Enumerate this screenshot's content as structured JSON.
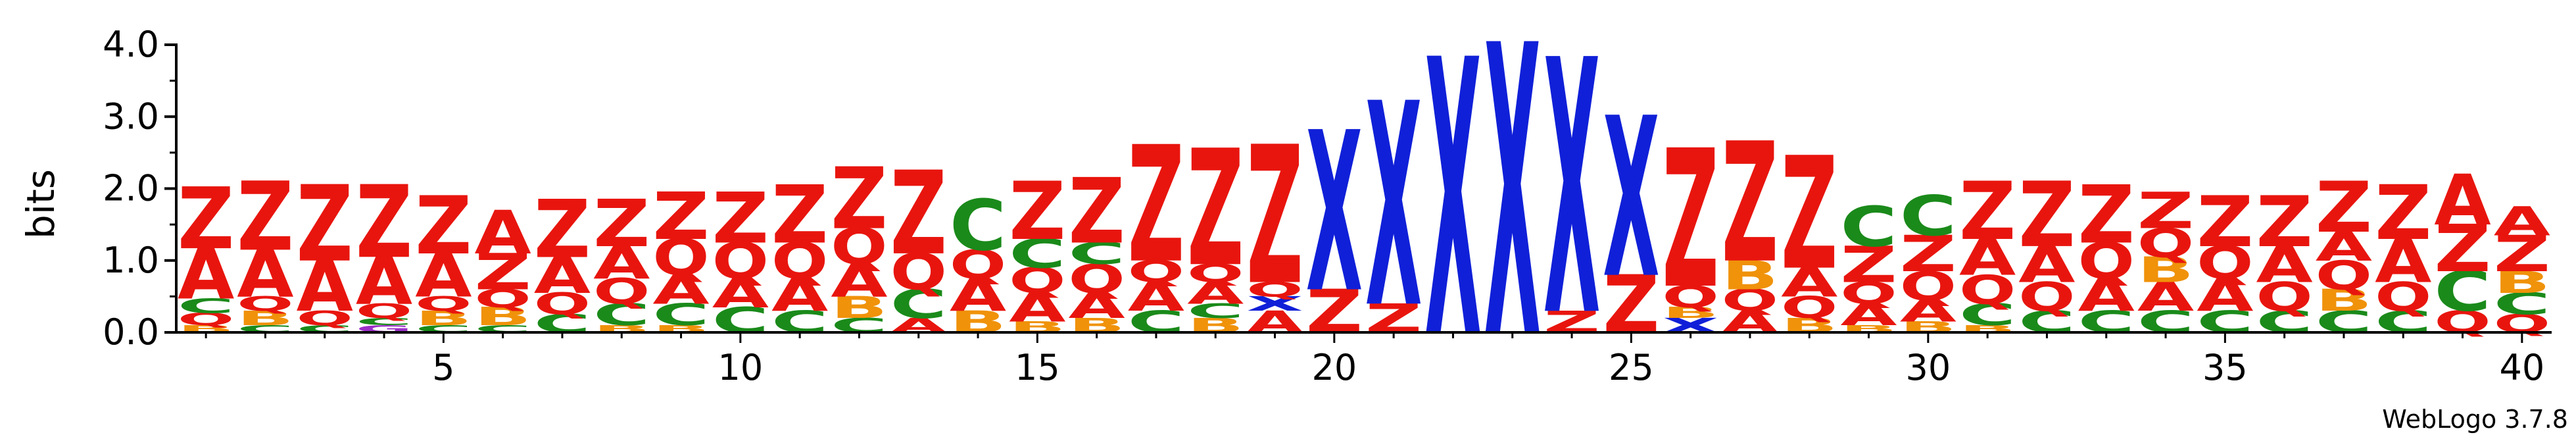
{
  "chart_data": {
    "type": "sequence-logo",
    "ylabel": "bits",
    "ylim": [
      0,
      4.0
    ],
    "yticks": [
      "0.0",
      "1.0",
      "2.0",
      "3.0",
      "4.0"
    ],
    "xticks": [
      5,
      10,
      15,
      20,
      25,
      30,
      35,
      40
    ],
    "positions": 40,
    "credit": "WebLogo 3.7.8",
    "colors": {
      "Z": "#e8150e",
      "A": "#e8150e",
      "Q": "#e8150e",
      "X": "#1020d8",
      "C": "#1a8a1a",
      "B": "#f0920a",
      "G": "#9b30c8"
    },
    "columns": [
      [
        [
          "B",
          0.1
        ],
        [
          "Q",
          0.17
        ],
        [
          "C",
          0.2
        ],
        [
          "A",
          0.7
        ],
        [
          "Z",
          0.85
        ]
      ],
      [
        [
          "C",
          0.1
        ],
        [
          "B",
          0.2
        ],
        [
          "Q",
          0.2
        ],
        [
          "A",
          0.65
        ],
        [
          "Z",
          0.95
        ]
      ],
      [
        [
          "C",
          0.1
        ],
        [
          "Q",
          0.2
        ],
        [
          "A",
          0.7
        ],
        [
          "Z",
          1.05
        ]
      ],
      [
        [
          "G",
          0.1
        ],
        [
          "C",
          0.1
        ],
        [
          "Q",
          0.2
        ],
        [
          "A",
          0.65
        ],
        [
          "Z",
          1.0
        ]
      ],
      [
        [
          "C",
          0.1
        ],
        [
          "B",
          0.2
        ],
        [
          "Q",
          0.2
        ],
        [
          "A",
          0.6
        ],
        [
          "Z",
          0.8
        ]
      ],
      [
        [
          "C",
          0.1
        ],
        [
          "B",
          0.25
        ],
        [
          "Q",
          0.25
        ],
        [
          "Z",
          0.5
        ],
        [
          "A",
          0.6
        ]
      ],
      [
        [
          "C",
          0.25
        ],
        [
          "Q",
          0.3
        ],
        [
          "A",
          0.5
        ],
        [
          "Z",
          0.8
        ]
      ],
      [
        [
          "B",
          0.1
        ],
        [
          "C",
          0.3
        ],
        [
          "Q",
          0.35
        ],
        [
          "A",
          0.45
        ],
        [
          "Z",
          0.65
        ]
      ],
      [
        [
          "B",
          0.1
        ],
        [
          "C",
          0.3
        ],
        [
          "A",
          0.4
        ],
        [
          "Q",
          0.5
        ],
        [
          "Z",
          0.65
        ]
      ],
      [
        [
          "C",
          0.35
        ],
        [
          "A",
          0.4
        ],
        [
          "Q",
          0.5
        ],
        [
          "Z",
          0.7
        ]
      ],
      [
        [
          "C",
          0.3
        ],
        [
          "A",
          0.45
        ],
        [
          "Q",
          0.5
        ],
        [
          "Z",
          0.8
        ]
      ],
      [
        [
          "C",
          0.2
        ],
        [
          "B",
          0.3
        ],
        [
          "A",
          0.45
        ],
        [
          "Q",
          0.5
        ],
        [
          "Z",
          0.85
        ]
      ],
      [
        [
          "A",
          0.2
        ],
        [
          "C",
          0.4
        ],
        [
          "Q",
          0.5
        ],
        [
          "Z",
          1.15
        ]
      ],
      [
        [
          "B",
          0.3
        ],
        [
          "A",
          0.45
        ],
        [
          "Q",
          0.4
        ],
        [
          "C",
          0.7
        ]
      ],
      [
        [
          "B",
          0.15
        ],
        [
          "A",
          0.4
        ],
        [
          "Q",
          0.35
        ],
        [
          "C",
          0.4
        ],
        [
          "Z",
          0.8
        ]
      ],
      [
        [
          "B",
          0.2
        ],
        [
          "A",
          0.35
        ],
        [
          "Q",
          0.4
        ],
        [
          "C",
          0.3
        ],
        [
          "Z",
          0.9
        ]
      ],
      [
        [
          "C",
          0.3
        ],
        [
          "A",
          0.4
        ],
        [
          "Q",
          0.3
        ],
        [
          "Z",
          1.6
        ]
      ],
      [
        [
          "B",
          0.2
        ],
        [
          "C",
          0.2
        ],
        [
          "A",
          0.3
        ],
        [
          "Q",
          0.25
        ],
        [
          "Z",
          1.6
        ]
      ],
      [
        [
          "A",
          0.3
        ],
        [
          "X",
          0.2
        ],
        [
          "Q",
          0.2
        ],
        [
          "Z",
          1.9
        ]
      ],
      [
        [
          "Z",
          0.6
        ],
        [
          "X",
          2.2
        ]
      ],
      [
        [
          "Z",
          0.4
        ],
        [
          "X",
          2.8
        ]
      ],
      [
        [
          "X",
          3.8
        ]
      ],
      [
        [
          "X",
          4.0
        ]
      ],
      [
        [
          "Z",
          0.3
        ],
        [
          "X",
          3.5
        ]
      ],
      [
        [
          "Z",
          0.8
        ],
        [
          "X",
          2.2
        ]
      ],
      [
        [
          "X",
          0.2
        ],
        [
          "B",
          0.15
        ],
        [
          "Q",
          0.3
        ],
        [
          "Z",
          1.9
        ]
      ],
      [
        [
          "A",
          0.3
        ],
        [
          "Q",
          0.3
        ],
        [
          "B",
          0.4
        ],
        [
          "Z",
          1.65
        ]
      ],
      [
        [
          "B",
          0.2
        ],
        [
          "Q",
          0.3
        ],
        [
          "A",
          0.4
        ],
        [
          "Z",
          1.55
        ]
      ],
      [
        [
          "B",
          0.1
        ],
        [
          "A",
          0.3
        ],
        [
          "Q",
          0.3
        ],
        [
          "Z",
          0.5
        ],
        [
          "C",
          0.55
        ]
      ],
      [
        [
          "B",
          0.15
        ],
        [
          "A",
          0.3
        ],
        [
          "Q",
          0.4
        ],
        [
          "Z",
          0.5
        ],
        [
          "C",
          0.55
        ]
      ],
      [
        [
          "B",
          0.1
        ],
        [
          "C",
          0.3
        ],
        [
          "Q",
          0.4
        ],
        [
          "A",
          0.5
        ],
        [
          "Z",
          0.8
        ]
      ],
      [
        [
          "C",
          0.3
        ],
        [
          "Q",
          0.4
        ],
        [
          "A",
          0.5
        ],
        [
          "Z",
          0.9
        ]
      ],
      [
        [
          "C",
          0.3
        ],
        [
          "A",
          0.45
        ],
        [
          "Q",
          0.5
        ],
        [
          "Z",
          0.8
        ]
      ],
      [
        [
          "C",
          0.3
        ],
        [
          "A",
          0.4
        ],
        [
          "B",
          0.35
        ],
        [
          "Q",
          0.4
        ],
        [
          "Z",
          0.5
        ]
      ],
      [
        [
          "C",
          0.3
        ],
        [
          "A",
          0.45
        ],
        [
          "Q",
          0.45
        ],
        [
          "Z",
          0.7
        ]
      ],
      [
        [
          "C",
          0.3
        ],
        [
          "Q",
          0.4
        ],
        [
          "A",
          0.5
        ],
        [
          "Z",
          0.7
        ]
      ],
      [
        [
          "C",
          0.3
        ],
        [
          "B",
          0.3
        ],
        [
          "Q",
          0.4
        ],
        [
          "A",
          0.4
        ],
        [
          "Z",
          0.7
        ]
      ],
      [
        [
          "C",
          0.3
        ],
        [
          "Q",
          0.4
        ],
        [
          "A",
          0.6
        ],
        [
          "Z",
          0.75
        ]
      ],
      [
        [
          "Q",
          0.3
        ],
        [
          "C",
          0.55
        ],
        [
          "Z",
          0.65
        ],
        [
          "A",
          0.7
        ]
      ],
      [
        [
          "Q",
          0.25
        ],
        [
          "C",
          0.3
        ],
        [
          "B",
          0.3
        ],
        [
          "Z",
          0.5
        ],
        [
          "A",
          0.4
        ]
      ]
    ]
  }
}
